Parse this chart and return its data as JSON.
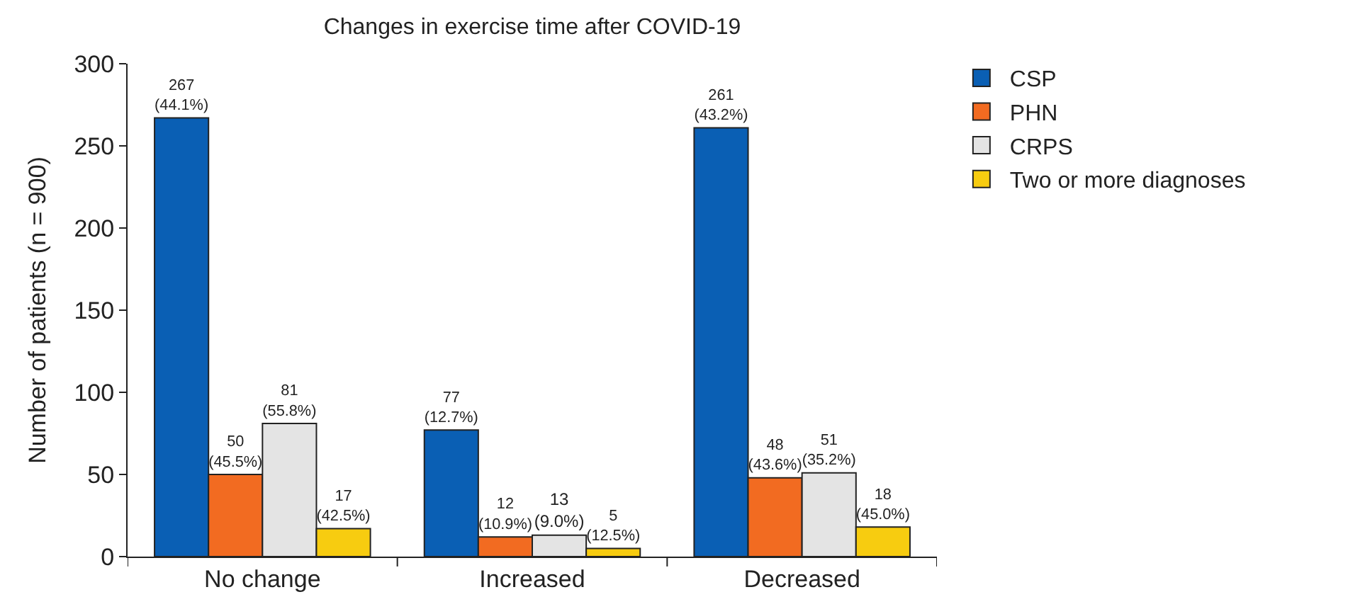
{
  "chart_data": {
    "type": "bar",
    "title": "Changes in exercise time after COVID-19",
    "ylabel": "Number of patients (n = 900)",
    "categories": [
      "No change",
      "Increased",
      "Decreased"
    ],
    "series": [
      {
        "name": "CSP",
        "color": "#0a5fb4",
        "values": [
          267,
          77,
          261
        ],
        "value_labels": [
          "267\n(44.1%)",
          "77\n(12.7%)",
          "261\n(43.2%)"
        ]
      },
      {
        "name": "PHN",
        "color": "#f26b21",
        "values": [
          50,
          12,
          48
        ],
        "value_labels": [
          "50\n(45.5%)",
          "12\n(10.9%)",
          "48\n(43.6%)"
        ]
      },
      {
        "name": "CRPS",
        "color": "#e4e4e4",
        "values": [
          81,
          13,
          51
        ],
        "value_labels": [
          "81\n(55.8%)",
          "13\n(9.0%)",
          "51\n(35.2%)"
        ]
      },
      {
        "name": "Two or more diagnoses",
        "color": "#f7cc10",
        "values": [
          17,
          5,
          18
        ],
        "value_labels": [
          "17\n(42.5%)",
          "5\n(12.5%)",
          "18\n(45.0%)"
        ]
      }
    ],
    "ylim": [
      0,
      300
    ],
    "yticks": [
      0,
      50,
      100,
      150,
      200,
      250,
      300
    ],
    "legend": "top right"
  }
}
